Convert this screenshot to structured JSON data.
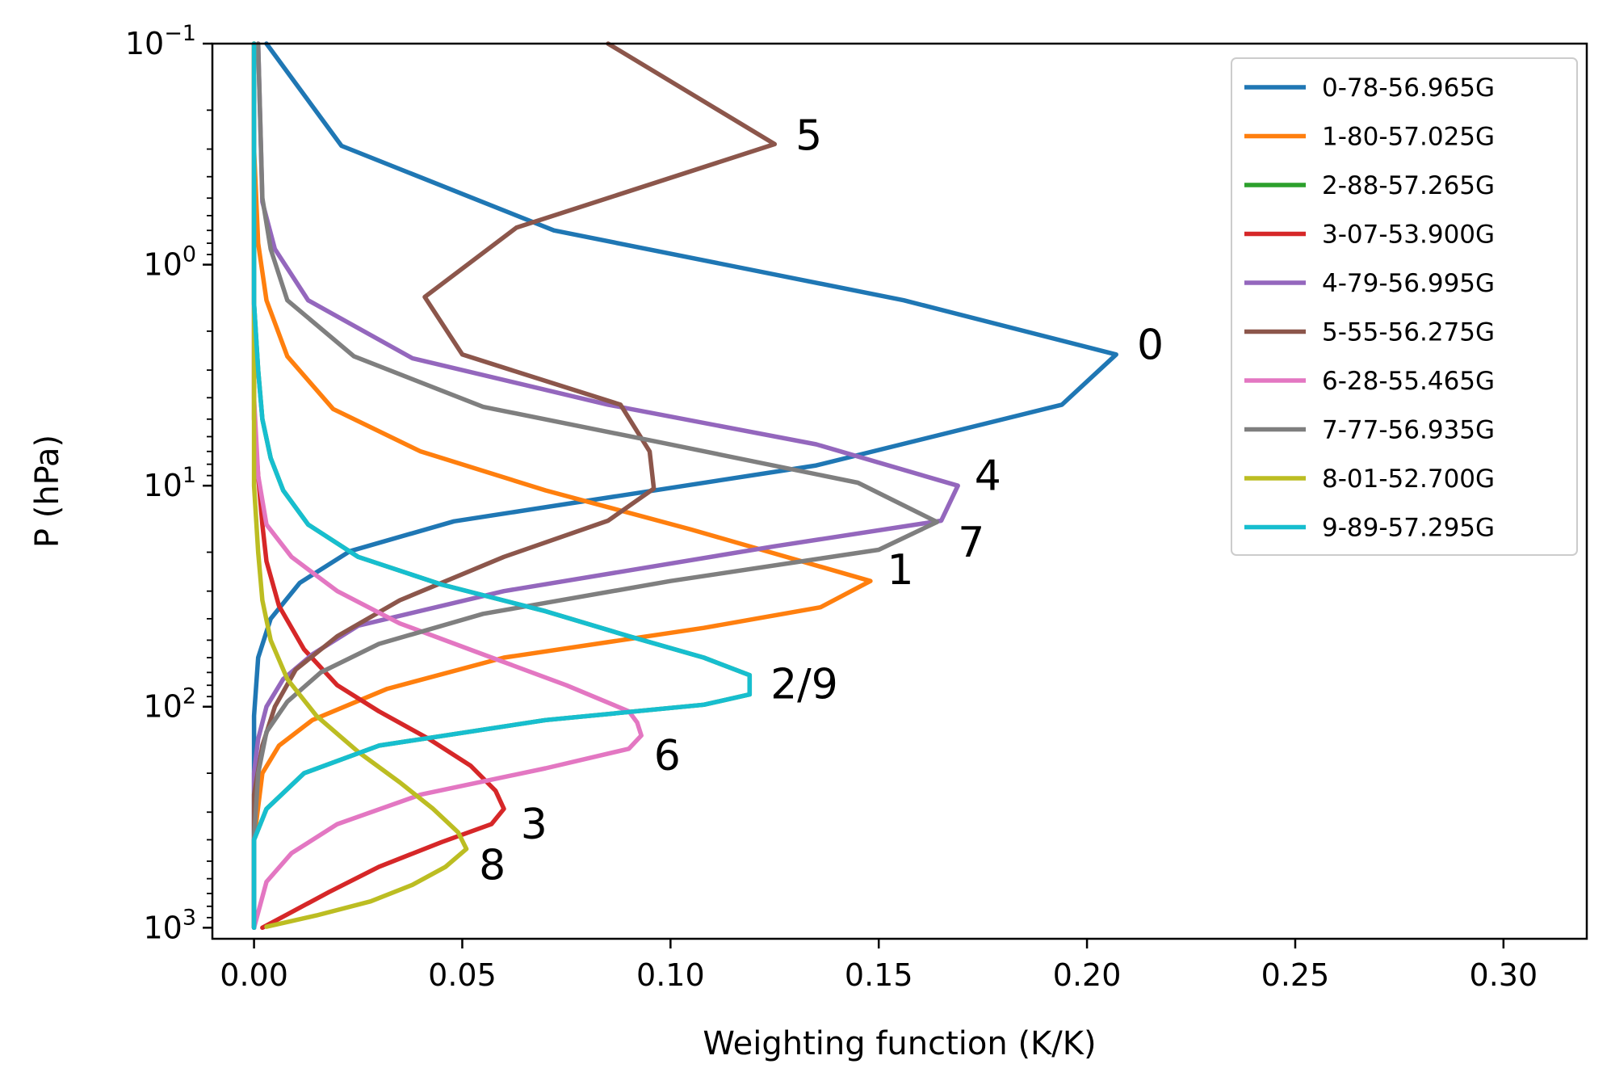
{
  "chart_data": {
    "type": "line",
    "xlabel": "Weighting function (K/K)",
    "ylabel": "P (hPa)",
    "xlim": [
      -0.01,
      0.32
    ],
    "ylim_log10": [
      -1,
      3.05
    ],
    "yscale": "log",
    "y_inverted": true,
    "grid": false,
    "legend_position": "top-right",
    "xticks": [
      0.0,
      0.05,
      0.1,
      0.15,
      0.2,
      0.25,
      0.3
    ],
    "xtick_labels": [
      "0.00",
      "0.05",
      "0.10",
      "0.15",
      "0.20",
      "0.25",
      "0.30"
    ],
    "yticks": [
      {
        "base": "10",
        "exp": "−1",
        "value": 0.1
      },
      {
        "base": "10",
        "exp": "0",
        "value": 1
      },
      {
        "base": "10",
        "exp": "1",
        "value": 10
      },
      {
        "base": "10",
        "exp": "2",
        "value": 100
      },
      {
        "base": "10",
        "exp": "3",
        "value": 1000
      }
    ],
    "series": [
      {
        "name": "0-78-56.965G",
        "color": "#1f77b4",
        "annotation": "0",
        "points": [
          [
            0.003,
            0.1
          ],
          [
            0.021,
            0.29
          ],
          [
            0.072,
            0.7
          ],
          [
            0.156,
            1.45
          ],
          [
            0.207,
            2.55
          ],
          [
            0.194,
            4.3
          ],
          [
            0.135,
            8.1
          ],
          [
            0.048,
            14.5
          ],
          [
            0.023,
            19.8
          ],
          [
            0.011,
            27.5
          ],
          [
            0.004,
            40
          ],
          [
            0.001,
            60
          ],
          [
            0.0,
            110
          ],
          [
            0.0,
            200
          ],
          [
            0.0,
            400
          ],
          [
            0.0,
            1000
          ]
        ]
      },
      {
        "name": "1-80-57.025G",
        "color": "#ff7f0e",
        "annotation": "1",
        "points": [
          [
            0.0,
            0.1
          ],
          [
            0.0,
            0.3
          ],
          [
            0.001,
            0.8
          ],
          [
            0.003,
            1.45
          ],
          [
            0.008,
            2.6
          ],
          [
            0.019,
            4.5
          ],
          [
            0.04,
            7.0
          ],
          [
            0.07,
            10.5
          ],
          [
            0.105,
            15.8
          ],
          [
            0.148,
            27
          ],
          [
            0.136,
            35.5
          ],
          [
            0.108,
            44
          ],
          [
            0.06,
            60
          ],
          [
            0.032,
            83
          ],
          [
            0.014,
            115
          ],
          [
            0.006,
            150
          ],
          [
            0.002,
            200
          ],
          [
            0.0,
            400
          ],
          [
            0.0,
            1000
          ]
        ]
      },
      {
        "name": "2-88-57.265G",
        "color": "#2ca02c",
        "annotation": "2/9",
        "points": [
          [
            0.0,
            0.1
          ],
          [
            0.0,
            0.5
          ],
          [
            0.0,
            1.5
          ],
          [
            0.001,
            3.0
          ],
          [
            0.002,
            5.0
          ],
          [
            0.004,
            7.5
          ],
          [
            0.007,
            10.5
          ],
          [
            0.013,
            15
          ],
          [
            0.025,
            21
          ],
          [
            0.045,
            28
          ],
          [
            0.07,
            37
          ],
          [
            0.09,
            48
          ],
          [
            0.108,
            60
          ],
          [
            0.119,
            72
          ],
          [
            0.119,
            88
          ],
          [
            0.108,
            98
          ],
          [
            0.07,
            115
          ],
          [
            0.03,
            150
          ],
          [
            0.012,
            200
          ],
          [
            0.003,
            290
          ],
          [
            0.0,
            400
          ],
          [
            0.0,
            1000
          ]
        ]
      },
      {
        "name": "3-07-53.900G",
        "color": "#d62728",
        "annotation": "3",
        "points": [
          [
            0.0,
            0.1
          ],
          [
            0.0,
            1.0
          ],
          [
            0.0,
            5.0
          ],
          [
            0.001,
            9
          ],
          [
            0.002,
            15
          ],
          [
            0.003,
            22
          ],
          [
            0.006,
            35
          ],
          [
            0.012,
            55
          ],
          [
            0.02,
            80
          ],
          [
            0.03,
            105
          ],
          [
            0.042,
            140
          ],
          [
            0.052,
            185
          ],
          [
            0.058,
            240
          ],
          [
            0.06,
            290
          ],
          [
            0.057,
            340
          ],
          [
            0.045,
            410
          ],
          [
            0.03,
            530
          ],
          [
            0.018,
            690
          ],
          [
            0.008,
            870
          ],
          [
            0.002,
            1000
          ]
        ]
      },
      {
        "name": "4-79-56.995G",
        "color": "#9467bd",
        "annotation": "4",
        "points": [
          [
            0.001,
            0.1
          ],
          [
            0.002,
            0.52
          ],
          [
            0.005,
            0.85
          ],
          [
            0.013,
            1.45
          ],
          [
            0.038,
            2.65
          ],
          [
            0.085,
            4.3
          ],
          [
            0.135,
            6.5
          ],
          [
            0.169,
            10
          ],
          [
            0.165,
            14.4
          ],
          [
            0.125,
            18.8
          ],
          [
            0.06,
            30
          ],
          [
            0.025,
            43
          ],
          [
            0.014,
            58
          ],
          [
            0.007,
            75
          ],
          [
            0.003,
            100
          ],
          [
            0.001,
            140
          ],
          [
            0.0,
            200
          ],
          [
            0.0,
            400
          ],
          [
            0.0,
            1000
          ]
        ]
      },
      {
        "name": "5-55-56.275G",
        "color": "#8c564b",
        "annotation": "5",
        "points": [
          [
            0.085,
            0.1
          ],
          [
            0.125,
            0.285
          ],
          [
            0.063,
            0.68
          ],
          [
            0.041,
            1.4
          ],
          [
            0.05,
            2.55
          ],
          [
            0.088,
            4.3
          ],
          [
            0.095,
            7.0
          ],
          [
            0.096,
            10.3
          ],
          [
            0.085,
            14.4
          ],
          [
            0.06,
            21
          ],
          [
            0.035,
            33
          ],
          [
            0.02,
            48
          ],
          [
            0.01,
            68
          ],
          [
            0.005,
            100
          ],
          [
            0.002,
            150
          ],
          [
            0.0,
            250
          ],
          [
            0.0,
            1000
          ]
        ]
      },
      {
        "name": "6-28-55.465G",
        "color": "#e377c2",
        "annotation": "6",
        "points": [
          [
            0.0,
            0.1
          ],
          [
            0.0,
            1.0
          ],
          [
            0.0,
            4.0
          ],
          [
            0.001,
            9
          ],
          [
            0.003,
            15
          ],
          [
            0.009,
            21
          ],
          [
            0.02,
            30
          ],
          [
            0.035,
            42
          ],
          [
            0.055,
            58
          ],
          [
            0.075,
            80
          ],
          [
            0.09,
            105
          ],
          [
            0.092,
            118
          ],
          [
            0.093,
            135
          ],
          [
            0.09,
            155
          ],
          [
            0.07,
            190
          ],
          [
            0.04,
            250
          ],
          [
            0.02,
            340
          ],
          [
            0.009,
            460
          ],
          [
            0.003,
            620
          ],
          [
            0.0,
            1000
          ]
        ]
      },
      {
        "name": "7-77-56.935G",
        "color": "#7f7f7f",
        "annotation": "7",
        "points": [
          [
            0.001,
            0.1
          ],
          [
            0.002,
            0.5
          ],
          [
            0.004,
            0.85
          ],
          [
            0.008,
            1.45
          ],
          [
            0.024,
            2.6
          ],
          [
            0.055,
            4.4
          ],
          [
            0.098,
            6.4
          ],
          [
            0.145,
            9.7
          ],
          [
            0.164,
            14.6
          ],
          [
            0.15,
            19.5
          ],
          [
            0.1,
            27
          ],
          [
            0.055,
            38
          ],
          [
            0.03,
            52
          ],
          [
            0.016,
            70
          ],
          [
            0.008,
            95
          ],
          [
            0.003,
            130
          ],
          [
            0.001,
            200
          ],
          [
            0.0,
            400
          ],
          [
            0.0,
            1000
          ]
        ]
      },
      {
        "name": "8-01-52.700G",
        "color": "#bcbd22",
        "annotation": "8",
        "points": [
          [
            0.0,
            0.1
          ],
          [
            0.0,
            1.0
          ],
          [
            0.0,
            5.0
          ],
          [
            0.0,
            10
          ],
          [
            0.001,
            20
          ],
          [
            0.002,
            33
          ],
          [
            0.004,
            50
          ],
          [
            0.008,
            75
          ],
          [
            0.015,
            110
          ],
          [
            0.025,
            160
          ],
          [
            0.035,
            220
          ],
          [
            0.043,
            290
          ],
          [
            0.049,
            370
          ],
          [
            0.051,
            440
          ],
          [
            0.046,
            530
          ],
          [
            0.038,
            640
          ],
          [
            0.028,
            760
          ],
          [
            0.015,
            880
          ],
          [
            0.003,
            990
          ]
        ]
      },
      {
        "name": "9-89-57.295G",
        "color": "#17becf",
        "annotation": "",
        "points": [
          [
            0.0,
            0.1
          ],
          [
            0.0,
            0.5
          ],
          [
            0.0,
            1.5
          ],
          [
            0.001,
            3.0
          ],
          [
            0.002,
            5.0
          ],
          [
            0.004,
            7.5
          ],
          [
            0.007,
            10.5
          ],
          [
            0.013,
            15
          ],
          [
            0.025,
            21
          ],
          [
            0.045,
            28
          ],
          [
            0.07,
            37
          ],
          [
            0.09,
            48
          ],
          [
            0.108,
            60
          ],
          [
            0.119,
            72
          ],
          [
            0.119,
            88
          ],
          [
            0.108,
            98
          ],
          [
            0.07,
            115
          ],
          [
            0.03,
            150
          ],
          [
            0.012,
            200
          ],
          [
            0.003,
            290
          ],
          [
            0.0,
            400
          ],
          [
            0.0,
            1000
          ]
        ]
      }
    ],
    "annotations": [
      {
        "text": "0",
        "x": 0.212,
        "p": 2.3
      },
      {
        "text": "5",
        "x": 0.13,
        "p": 0.26
      },
      {
        "text": "4",
        "x": 0.173,
        "p": 9.0
      },
      {
        "text": "7",
        "x": 0.169,
        "p": 18.0
      },
      {
        "text": "1",
        "x": 0.152,
        "p": 24.0
      },
      {
        "text": "2/9",
        "x": 0.124,
        "p": 79.0
      },
      {
        "text": "6",
        "x": 0.096,
        "p": 166.0
      },
      {
        "text": "3",
        "x": 0.064,
        "p": 340.0
      },
      {
        "text": "8",
        "x": 0.054,
        "p": 520.0
      }
    ]
  }
}
